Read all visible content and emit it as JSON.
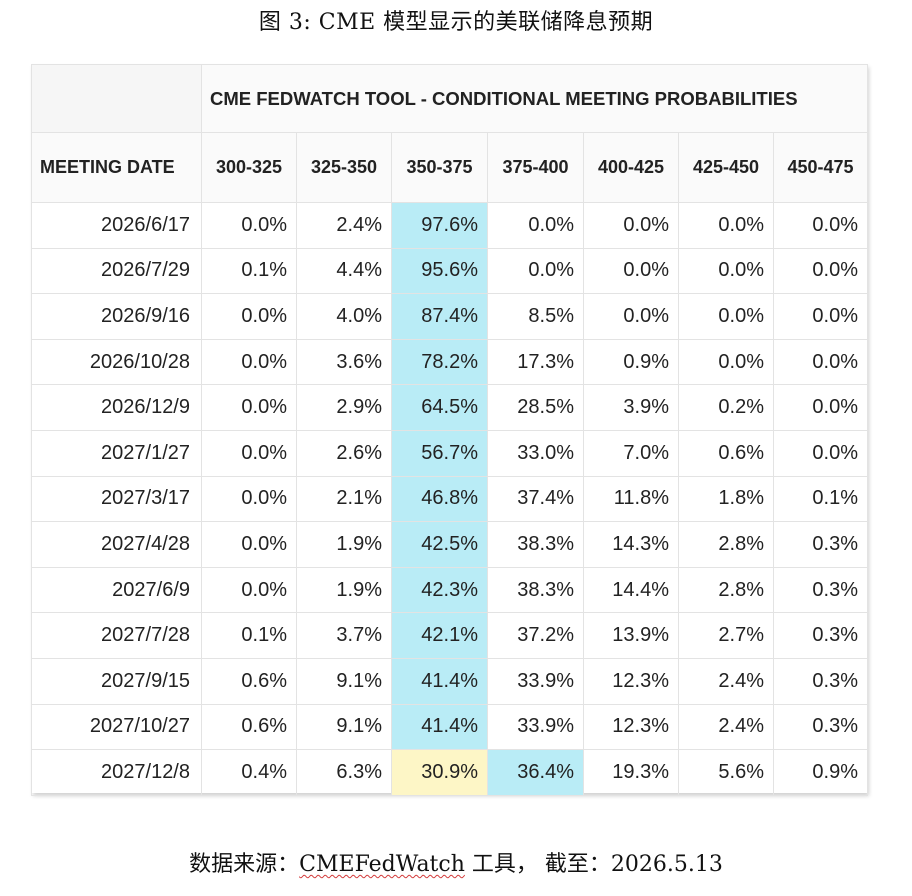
{
  "figure_title": "图 3:  CME 模型显示的美联储降息预期",
  "table": {
    "banner": "CME FEDWATCH TOOL - CONDITIONAL MEETING PROBABILITIES",
    "date_header": "MEETING DATE",
    "columns": [
      "300-325",
      "325-350",
      "350-375",
      "375-400",
      "400-425",
      "425-450",
      "450-475"
    ],
    "rows": [
      {
        "date": "2026/6/17",
        "values": [
          "0.0%",
          "2.4%",
          "97.6%",
          "0.0%",
          "0.0%",
          "0.0%",
          "0.0%"
        ],
        "highlight": [
          2
        ]
      },
      {
        "date": "2026/7/29",
        "values": [
          "0.1%",
          "4.4%",
          "95.6%",
          "0.0%",
          "0.0%",
          "0.0%",
          "0.0%"
        ],
        "highlight": [
          2
        ]
      },
      {
        "date": "2026/9/16",
        "values": [
          "0.0%",
          "4.0%",
          "87.4%",
          "8.5%",
          "0.0%",
          "0.0%",
          "0.0%"
        ],
        "highlight": [
          2
        ]
      },
      {
        "date": "2026/10/28",
        "values": [
          "0.0%",
          "3.6%",
          "78.2%",
          "17.3%",
          "0.9%",
          "0.0%",
          "0.0%"
        ],
        "highlight": [
          2
        ]
      },
      {
        "date": "2026/12/9",
        "values": [
          "0.0%",
          "2.9%",
          "64.5%",
          "28.5%",
          "3.9%",
          "0.2%",
          "0.0%"
        ],
        "highlight": [
          2
        ]
      },
      {
        "date": "2027/1/27",
        "values": [
          "0.0%",
          "2.6%",
          "56.7%",
          "33.0%",
          "7.0%",
          "0.6%",
          "0.0%"
        ],
        "highlight": [
          2
        ]
      },
      {
        "date": "2027/3/17",
        "values": [
          "0.0%",
          "2.1%",
          "46.8%",
          "37.4%",
          "11.8%",
          "1.8%",
          "0.1%"
        ],
        "highlight": [
          2
        ]
      },
      {
        "date": "2027/4/28",
        "values": [
          "0.0%",
          "1.9%",
          "42.5%",
          "38.3%",
          "14.3%",
          "2.8%",
          "0.3%"
        ],
        "highlight": [
          2
        ]
      },
      {
        "date": "2027/6/9",
        "values": [
          "0.0%",
          "1.9%",
          "42.3%",
          "38.3%",
          "14.4%",
          "2.8%",
          "0.3%"
        ],
        "highlight": [
          2
        ]
      },
      {
        "date": "2027/7/28",
        "values": [
          "0.1%",
          "3.7%",
          "42.1%",
          "37.2%",
          "13.9%",
          "2.7%",
          "0.3%"
        ],
        "highlight": [
          2
        ]
      },
      {
        "date": "2027/9/15",
        "values": [
          "0.6%",
          "9.1%",
          "41.4%",
          "33.9%",
          "12.3%",
          "2.4%",
          "0.3%"
        ],
        "highlight": [
          2
        ]
      },
      {
        "date": "2027/10/27",
        "values": [
          "0.6%",
          "9.1%",
          "41.4%",
          "33.9%",
          "12.3%",
          "2.4%",
          "0.3%"
        ],
        "highlight": [
          2
        ]
      },
      {
        "date": "2027/12/8",
        "values": [
          "0.4%",
          "6.3%",
          "30.9%",
          "36.4%",
          "19.3%",
          "5.6%",
          "0.9%"
        ],
        "highlight": [
          3
        ],
        "secondary": [
          2
        ]
      }
    ]
  },
  "source": {
    "prefix": "数据来源：",
    "tool": "CMEFedWatch",
    "suffix": " 工具，  截至：2026.5.13"
  },
  "colors": {
    "highlight": "#b9ecf6",
    "secondary_highlight": "#fdf6c6",
    "header_bg": "#fafafa",
    "border": "#e3e3e3"
  }
}
